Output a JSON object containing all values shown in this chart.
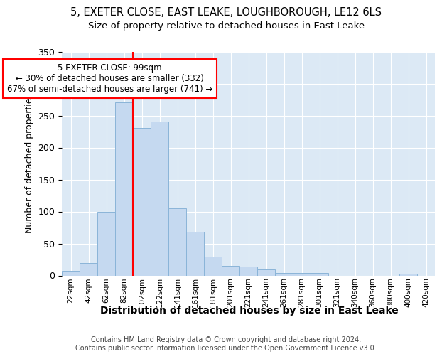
{
  "title1": "5, EXETER CLOSE, EAST LEAKE, LOUGHBOROUGH, LE12 6LS",
  "title2": "Size of property relative to detached houses in East Leake",
  "xlabel": "Distribution of detached houses by size in East Leake",
  "ylabel": "Number of detached properties",
  "categories": [
    "22sqm",
    "42sqm",
    "62sqm",
    "82sqm",
    "102sqm",
    "122sqm",
    "141sqm",
    "161sqm",
    "181sqm",
    "201sqm",
    "221sqm",
    "241sqm",
    "261sqm",
    "281sqm",
    "301sqm",
    "321sqm",
    "340sqm",
    "360sqm",
    "380sqm",
    "400sqm",
    "420sqm"
  ],
  "values": [
    7,
    19,
    99,
    271,
    231,
    241,
    105,
    68,
    30,
    15,
    14,
    10,
    4,
    4,
    4,
    0,
    0,
    0,
    0,
    3,
    0
  ],
  "bar_color": "#c5d9f0",
  "bar_edgecolor": "#8ab4d8",
  "vline_x_index": 4,
  "vline_color": "red",
  "annotation_text": "5 EXETER CLOSE: 99sqm\n← 30% of detached houses are smaller (332)\n67% of semi-detached houses are larger (741) →",
  "annotation_box_color": "white",
  "annotation_box_edgecolor": "red",
  "footnote": "Contains HM Land Registry data © Crown copyright and database right 2024.\nContains public sector information licensed under the Open Government Licence v3.0.",
  "ylim": [
    0,
    350
  ],
  "yticks": [
    0,
    50,
    100,
    150,
    200,
    250,
    300,
    350
  ],
  "background_color": "#dce9f5",
  "grid_color": "white",
  "title1_fontsize": 10.5,
  "title2_fontsize": 9.5,
  "xlabel_fontsize": 10,
  "ylabel_fontsize": 9,
  "footnote_fontsize": 7,
  "annot_fontsize": 8.5
}
